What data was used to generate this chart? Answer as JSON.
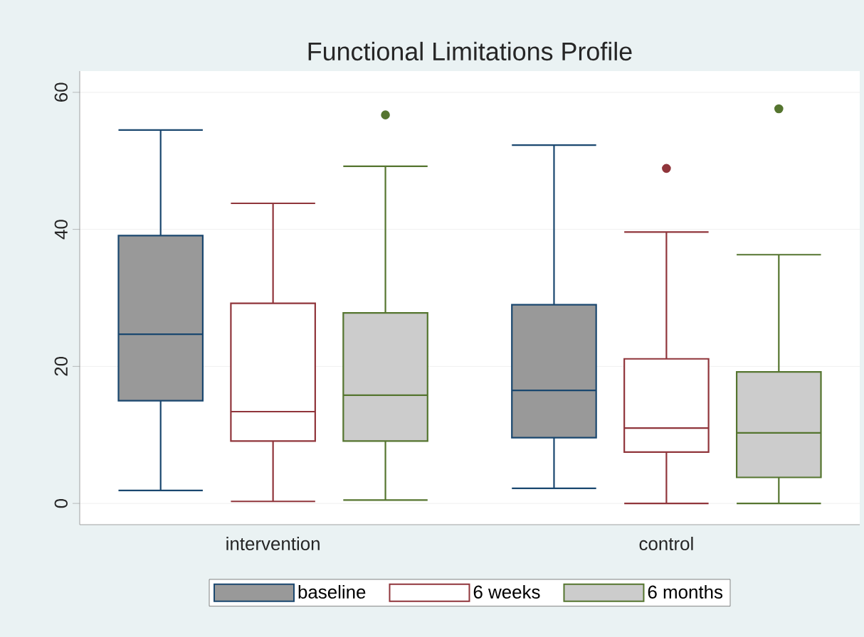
{
  "chart_data": {
    "type": "box",
    "title": "Functional Limitations Profile",
    "categories": [
      "intervention",
      "control"
    ],
    "series": [
      {
        "name": "baseline",
        "color": "#1a476f",
        "boxes": [
          {
            "low": 1.9,
            "q1": 15.0,
            "median": 24.7,
            "q3": 39.1,
            "high": 54.5
          },
          {
            "low": 2.2,
            "q1": 9.6,
            "median": 16.5,
            "q3": 29.0,
            "high": 52.3
          }
        ]
      },
      {
        "name": "6 weeks",
        "color": "#90353b",
        "boxes": [
          {
            "low": 0.3,
            "q1": 9.1,
            "median": 13.4,
            "q3": 29.2,
            "high": 43.8
          },
          {
            "low": 0,
            "q1": 7.5,
            "median": 11.0,
            "q3": 21.1,
            "high": 39.6,
            "outliers": [
              48.9
            ]
          }
        ]
      },
      {
        "name": "6 months",
        "color": "#55752f",
        "boxes": [
          {
            "low": 0.5,
            "q1": 9.1,
            "median": 15.8,
            "q3": 27.8,
            "high": 49.2,
            "outliers": [
              56.7
            ]
          },
          {
            "low": 0,
            "q1": 3.8,
            "median": 10.3,
            "q3": 19.2,
            "high": 36.3,
            "outliers": [
              57.6
            ]
          }
        ]
      }
    ],
    "ylim": [
      -3.1,
      63.1
    ],
    "yticks": [
      0,
      20,
      40,
      60
    ],
    "grid": "y",
    "legend": "bottom",
    "marker": "circle"
  }
}
